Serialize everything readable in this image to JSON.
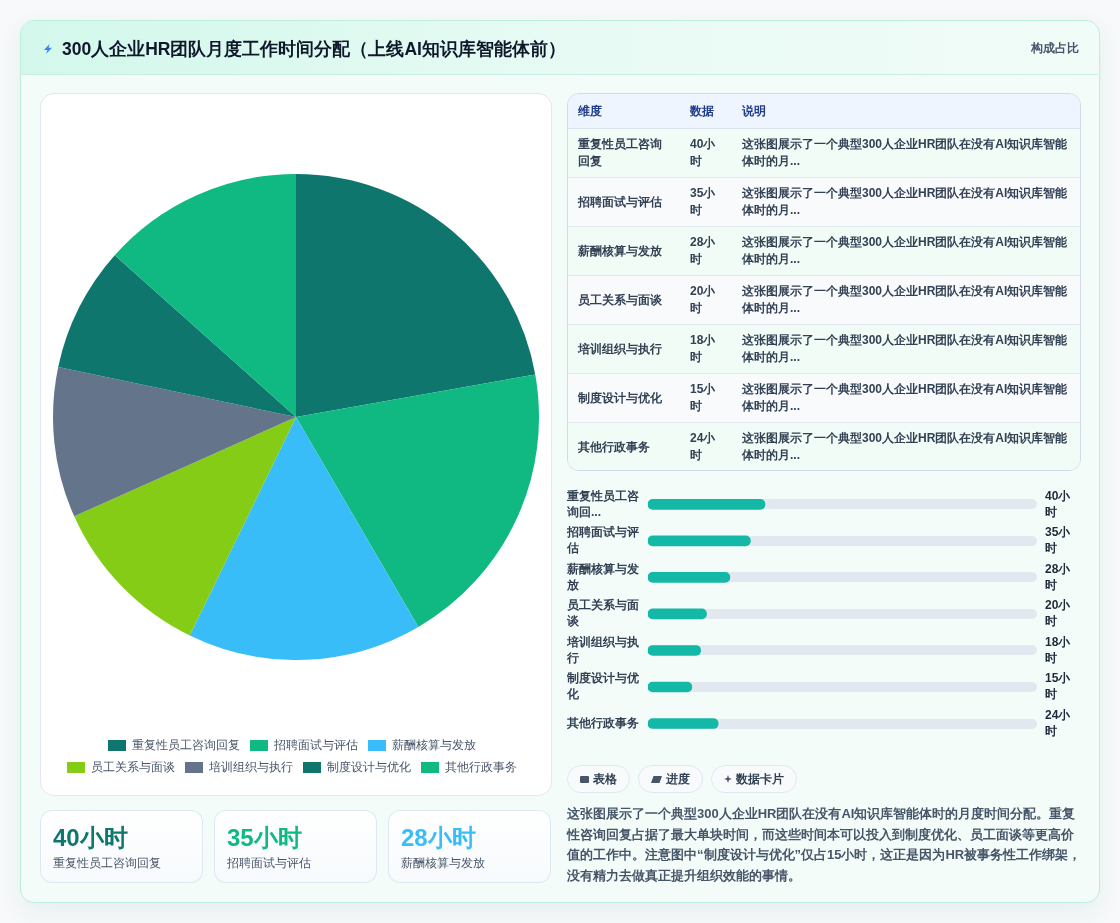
{
  "chart_data": [
    {
      "type": "other",
      "title": "300人企业HR团队月度工作时间分配（上线AI知识库智能体前）",
      "subtitle": "构成占比"
    },
    {
      "type": "pie",
      "categories": [
        "重复性员工咨询回复",
        "招聘面试与评估",
        "薪酬核算与发放",
        "员工关系与面谈",
        "培训组织与执行",
        "制度设计与优化",
        "其他行政事务"
      ],
      "values": [
        22.2,
        19.4,
        15.6,
        11.1,
        10,
        8.3,
        13.4
      ],
      "colors": [
        "#0f766e",
        "#10b981",
        "#38bdf8",
        "#84cc16",
        "#64748b",
        "#0f766e",
        "#10b981"
      ],
      "legend": "bottom"
    },
    {
      "type": "other",
      "categories": [
        "重复性员工咨询回复",
        "招聘面试与评估",
        "薪酬核算与发放",
        "员工关系与面谈",
        "培训组织与执行",
        "制度设计与优化",
        "其他行政事务"
      ],
      "value_labels": [
        "40小时",
        "35小时",
        "28小时",
        "20小时",
        "18小时",
        "15小时",
        "24小时"
      ],
      "annotations": [
        "维度",
        "数据",
        "说明",
        "这张图展示了一个典型300人企业HR团队在没有AI知识库智能体时的月...",
        "这张图展示了一个典型300人企业HR团队在没有AI知识库智能体时的月...",
        "这张图展示了一个典型300人企业HR团队在没有AI知识库智能体时的月...",
        "这张图展示了一个典型300人企业HR团队在没有AI知识库智能体时的月...",
        "这张图展示了一个典型300人企业HR团队在没有AI知识库智能体时的月...",
        "这张图展示了一个典型300人企业HR团队在没有AI知识库智能体时的月...",
        "这张图展示了一个典型300人企业HR团队在没有AI知识库智能体时的月..."
      ]
    },
    {
      "type": "bar",
      "orientation": "horizontal",
      "categories": [
        "重复性员工咨询回...",
        "招聘面试与评估",
        "薪酬核算与发放",
        "员工关系与面谈",
        "培训组织与执行",
        "制度设计与优化",
        "其他行政事务"
      ],
      "values": [
        40,
        35,
        28,
        20,
        18,
        15,
        24
      ],
      "color": "#14b8a6",
      "value_labels": [
        "40小时",
        "35小时",
        "28小时",
        "20小时",
        "18小时",
        "15小时",
        "24小时"
      ],
      "xlim": [
        0,
        133
      ],
      "tick_labels": "y",
      "grid": false
    },
    {
      "type": "other",
      "categories": [
        "表格",
        "进度",
        "数据卡片"
      ],
      "annotations": [
        "这张图展示了一个典型300人企业HR团队在没有AI知识库智能体时的月度时间分配。重复性咨询回复占据了最大单块时间，而这些时间本可以投入到制度优化、员工面谈等更高价值的工作中。注意图中“制度设计与优化”仅占15小时，这正是因为HR被事务性工作绑架，没有精力去做真正提升组织效能的事情。"
      ]
    },
    {
      "type": "other",
      "categories": [
        "重复性员工咨询回复",
        "招聘面试与评估",
        "薪酬核算与发放"
      ],
      "values": [
        40,
        35,
        28
      ],
      "value_labels": [
        "40小时",
        "35小时",
        "28小时"
      ],
      "colors": [
        "#0f766e",
        "#10b981",
        "#38bdf8"
      ]
    }
  ]
}
